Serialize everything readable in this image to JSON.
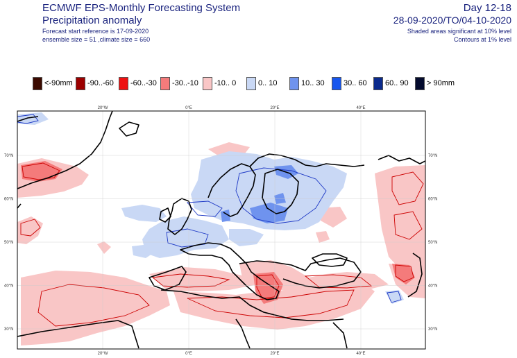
{
  "header": {
    "title_line1": "ECMWF EPS-Monthly Forecasting System",
    "title_line2": "Precipitation anomaly",
    "forecast_start": "Forecast start reference is 17-09-2020",
    "ensemble_info": "ensemble size = 51  ,climate size = 660",
    "period_label": "Day 12-18",
    "date_range": "28-09-2020/TO/04-10-2020",
    "shading_note": "Shaded areas significant at 10% level",
    "contour_note": "Contours at 1% level"
  },
  "legend": [
    {
      "label": "<-90mm",
      "color": "#3b0a00"
    },
    {
      "label": "-90..-60",
      "color": "#9c0000"
    },
    {
      "label": "-60..-30",
      "color": "#ee1111"
    },
    {
      "label": "-30..-10",
      "color": "#f47b7b"
    },
    {
      "label": "-10..  0",
      "color": "#f9c6c6"
    },
    {
      "label": "0..  10",
      "color": "#c9d8f5"
    },
    {
      "label": "10..  30",
      "color": "#6f93ee"
    },
    {
      "label": "30..  60",
      "color": "#1756ee"
    },
    {
      "label": "60..  90",
      "color": "#0b2a8c"
    },
    {
      "label": ">  90mm",
      "color": "#040b2e"
    }
  ],
  "map": {
    "longitude_labels": [
      "20°W",
      "0°E",
      "20°E",
      "40°E"
    ],
    "latitude_labels": [
      "70°N",
      "60°N",
      "50°N",
      "40°N",
      "30°N"
    ],
    "longitudes": [
      -20,
      0,
      20,
      40
    ],
    "latitudes": [
      70,
      60,
      50,
      40,
      30
    ]
  }
}
